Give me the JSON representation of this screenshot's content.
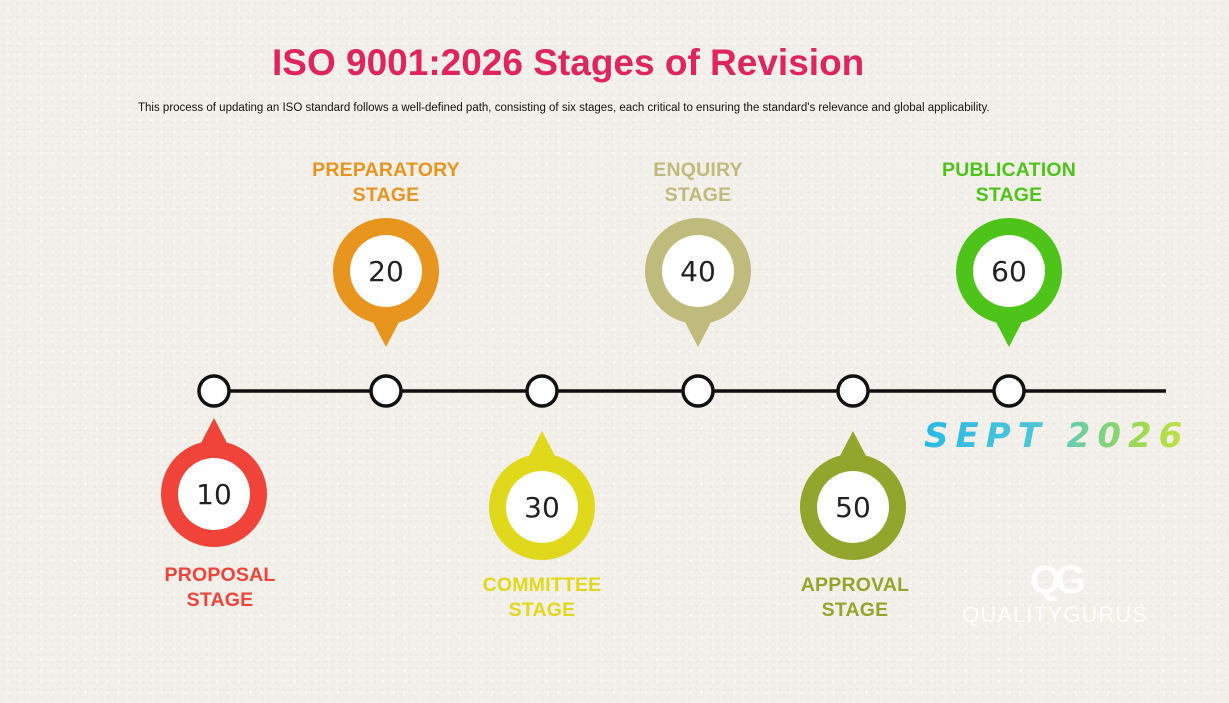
{
  "title": "ISO 9001:2026 Stages of Revision",
  "subtitle": "This process of updating an ISO standard follows a well-defined path, consisting of six stages, each critical to ensuring the standard's relevance and global applicability.",
  "stages": [
    {
      "number": "10",
      "name_line1": "PROPOSAL",
      "name_line2": "STAGE",
      "color": "#f0443a",
      "position": "below"
    },
    {
      "number": "20",
      "name_line1": "PREPARATORY",
      "name_line2": "STAGE",
      "color": "#e8951f",
      "position": "above"
    },
    {
      "number": "30",
      "name_line1": "COMMITTEE",
      "name_line2": "STAGE",
      "color": "#dfd81b",
      "position": "below"
    },
    {
      "number": "40",
      "name_line1": "ENQUIRY",
      "name_line2": "STAGE",
      "color": "#bfbb7c",
      "position": "above"
    },
    {
      "number": "50",
      "name_line1": "APPROVAL",
      "name_line2": "STAGE",
      "color": "#92a52c",
      "position": "below"
    },
    {
      "number": "60",
      "name_line1": "PUBLICATION",
      "name_line2": "STAGE",
      "color": "#4ec41a",
      "position": "above"
    }
  ],
  "date_label": "SEPT 2026",
  "logo": {
    "mark": "QG",
    "text": "QUALITYGURUS"
  }
}
